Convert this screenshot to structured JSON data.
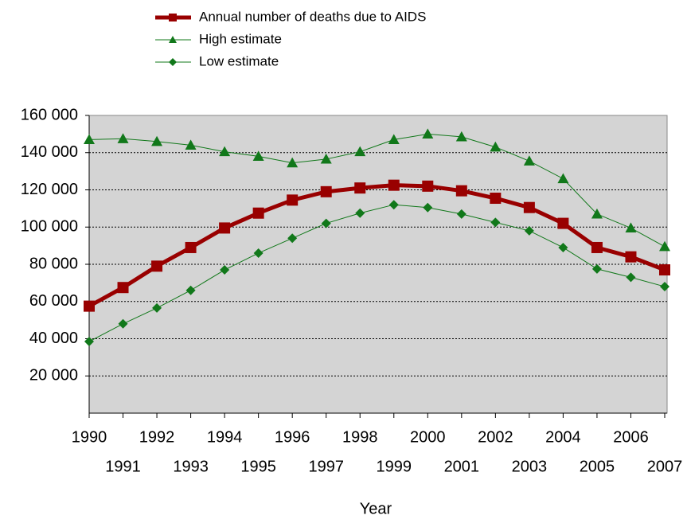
{
  "chart_data": {
    "type": "line",
    "x_label": "Year",
    "x": [
      1990,
      1991,
      1992,
      1993,
      1994,
      1995,
      1996,
      1997,
      1998,
      1999,
      2000,
      2001,
      2002,
      2003,
      2004,
      2005,
      2006,
      2007
    ],
    "series": [
      {
        "name": "Annual number of deaths due to AIDS",
        "color": "#990000",
        "marker": "square",
        "values": [
          57500,
          67500,
          79000,
          89000,
          99500,
          107500,
          114500,
          119000,
          121000,
          122500,
          122000,
          119500,
          115500,
          110500,
          102000,
          89000,
          84000,
          77000
        ]
      },
      {
        "name": "High estimate",
        "color": "#11781a",
        "marker": "triangle",
        "values": [
          147000,
          147500,
          146000,
          144000,
          140500,
          138000,
          134500,
          136500,
          140500,
          147000,
          150000,
          148500,
          143000,
          135500,
          126000,
          107000,
          99500,
          89500
        ]
      },
      {
        "name": "Low estimate",
        "color": "#11781a",
        "marker": "diamond",
        "values": [
          38500,
          48000,
          56500,
          66000,
          77000,
          86000,
          94000,
          102000,
          107500,
          112000,
          110500,
          107000,
          102500,
          98000,
          89000,
          77500,
          73000,
          68000
        ]
      }
    ],
    "xlim": [
      1990,
      2007
    ],
    "xticks": [
      1990,
      1991,
      1992,
      1993,
      1994,
      1995,
      1996,
      1997,
      1998,
      1999,
      2000,
      2001,
      2002,
      2003,
      2004,
      2005,
      2006,
      2007
    ],
    "ylim": [
      0,
      160000
    ],
    "yticks": [
      {
        "value": 20000,
        "label": "20 000"
      },
      {
        "value": 40000,
        "label": "40 000"
      },
      {
        "value": 60000,
        "label": "60 000"
      },
      {
        "value": 80000,
        "label": "80 000"
      },
      {
        "value": 100000,
        "label": "100 000"
      },
      {
        "value": 120000,
        "label": "120 000"
      },
      {
        "value": 140000,
        "label": "140 000"
      },
      {
        "value": 160000,
        "label": "160 000"
      }
    ],
    "grid": true,
    "legend": "top"
  }
}
